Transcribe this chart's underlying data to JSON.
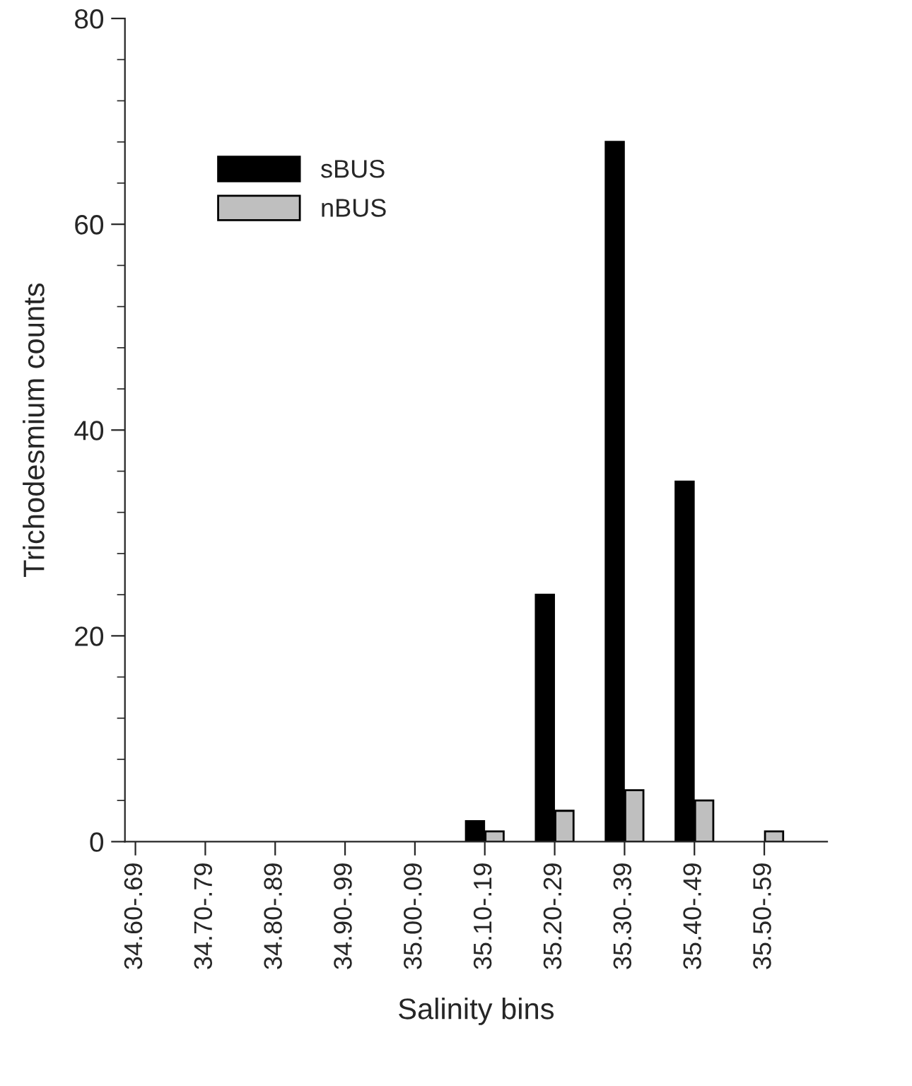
{
  "chart_data": {
    "type": "bar",
    "xlabel": "Salinity bins",
    "ylabel": "Trichodesmium counts",
    "categories": [
      "34.60-.69",
      "34.70-.79",
      "34.80-.89",
      "34.90-.99",
      "35.00-.09",
      "35.10-.19",
      "35.20-.29",
      "35.30-.39",
      "35.40-.49",
      "35.50-.59"
    ],
    "series": [
      {
        "name": "sBUS",
        "color": "#000000",
        "values": [
          0,
          0,
          0,
          0,
          0,
          2,
          24,
          68,
          35,
          0
        ]
      },
      {
        "name": "nBUS",
        "color": "#bfbfbf",
        "values": [
          0,
          0,
          0,
          0,
          0,
          1,
          3,
          5,
          4,
          1
        ]
      }
    ],
    "ylim": [
      0,
      80
    ],
    "yticks": [
      0,
      20,
      40,
      60,
      80
    ],
    "legend": "top left",
    "grid": false
  }
}
